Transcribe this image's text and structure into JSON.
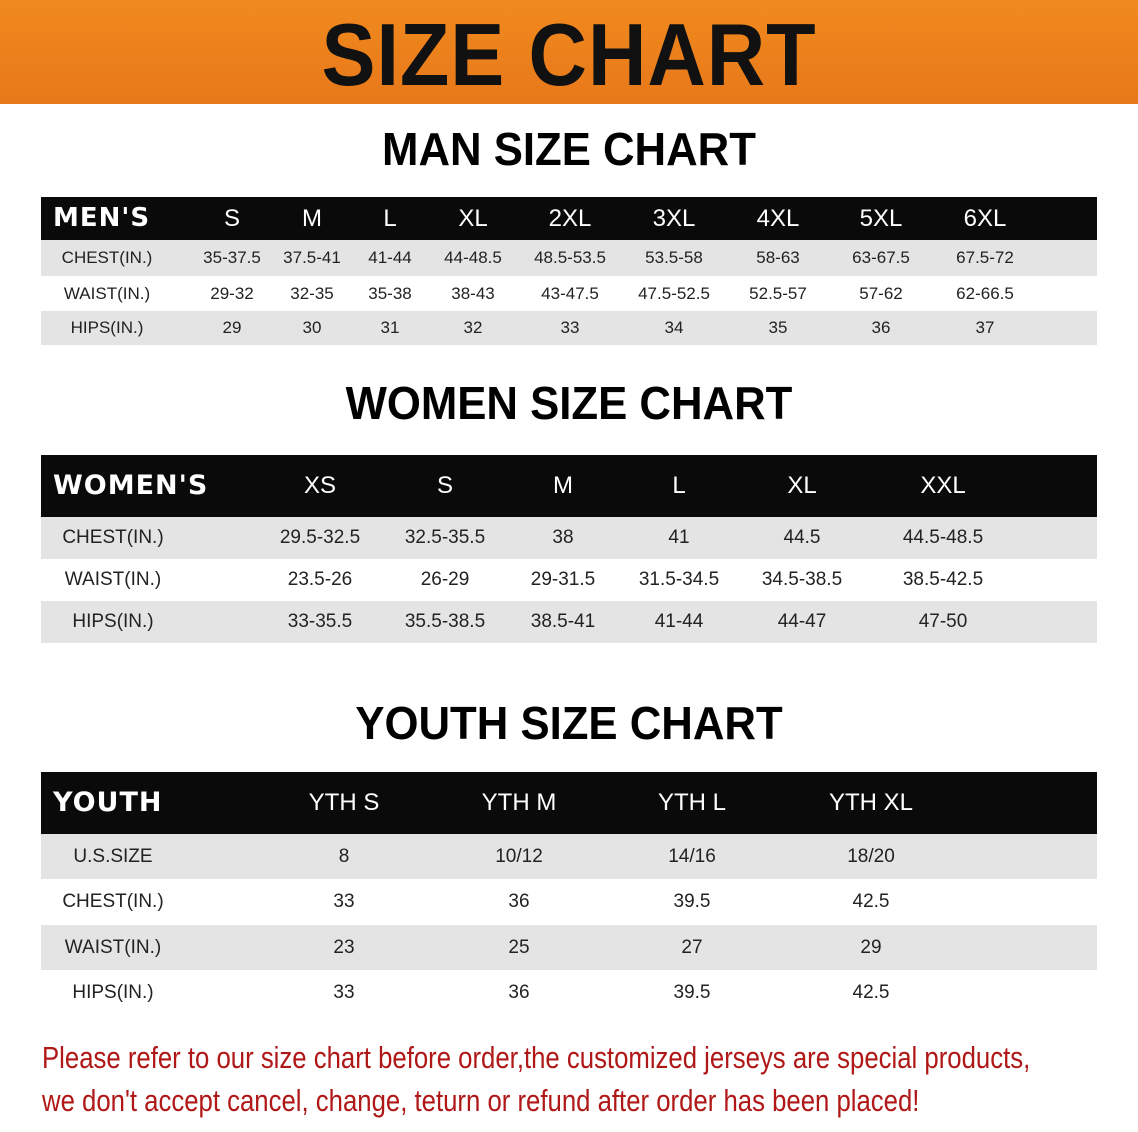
{
  "banner_title": "SIZE CHART",
  "men": {
    "title": "MAN SIZE CHART",
    "header": [
      "MEN'S",
      "S",
      "M",
      "L",
      "XL",
      "2XL",
      "3XL",
      "4XL",
      "5XL",
      "6XL"
    ],
    "rows": [
      [
        "CHEST(IN.)",
        "35-37.5",
        "37.5-41",
        "41-44",
        "44-48.5",
        "48.5-53.5",
        "53.5-58",
        "58-63",
        "63-67.5",
        "67.5-72"
      ],
      [
        "WAIST(IN.)",
        "29-32",
        "32-35",
        "35-38",
        "38-43",
        "43-47.5",
        "47.5-52.5",
        "52.5-57",
        "57-62",
        "62-66.5"
      ],
      [
        "HIPS(IN.)",
        "29",
        "30",
        "31",
        "32",
        "33",
        "34",
        "35",
        "36",
        "37"
      ]
    ]
  },
  "women": {
    "title": "WOMEN SIZE CHART",
    "header": [
      "WOMEN'S",
      "XS",
      "S",
      "M",
      "L",
      "XL",
      "XXL"
    ],
    "rows": [
      [
        "CHEST(IN.)",
        "29.5-32.5",
        "32.5-35.5",
        "38",
        "41",
        "44.5",
        "44.5-48.5"
      ],
      [
        "WAIST(IN.)",
        "23.5-26",
        "26-29",
        "29-31.5",
        "31.5-34.5",
        "34.5-38.5",
        "38.5-42.5"
      ],
      [
        "HIPS(IN.)",
        "33-35.5",
        "35.5-38.5",
        "38.5-41",
        "41-44",
        "44-47",
        "47-50"
      ]
    ]
  },
  "youth": {
    "title": "YOUTH SIZE CHART",
    "header": [
      "YOUTH",
      "YTH S",
      "YTH M",
      "YTH L",
      "YTH XL"
    ],
    "rows": [
      [
        "U.S.SIZE",
        "8",
        "10/12",
        "14/16",
        "18/20"
      ],
      [
        "CHEST(IN.)",
        "33",
        "36",
        "39.5",
        "42.5"
      ],
      [
        "WAIST(IN.)",
        "23",
        "25",
        "27",
        "29"
      ],
      [
        "HIPS(IN.)",
        "33",
        "36",
        "39.5",
        "42.5"
      ]
    ]
  },
  "notice": {
    "line1": "Please refer to our size chart before order,the customized jerseys are special products,",
    "line2": "we don't accept cancel, change, teturn or refund after order has been placed!"
  },
  "colors": {
    "banner": "#ec801c",
    "header_bg": "#0a0a0a",
    "row_alt": "#e4e4e4",
    "notice": "#b01818"
  }
}
